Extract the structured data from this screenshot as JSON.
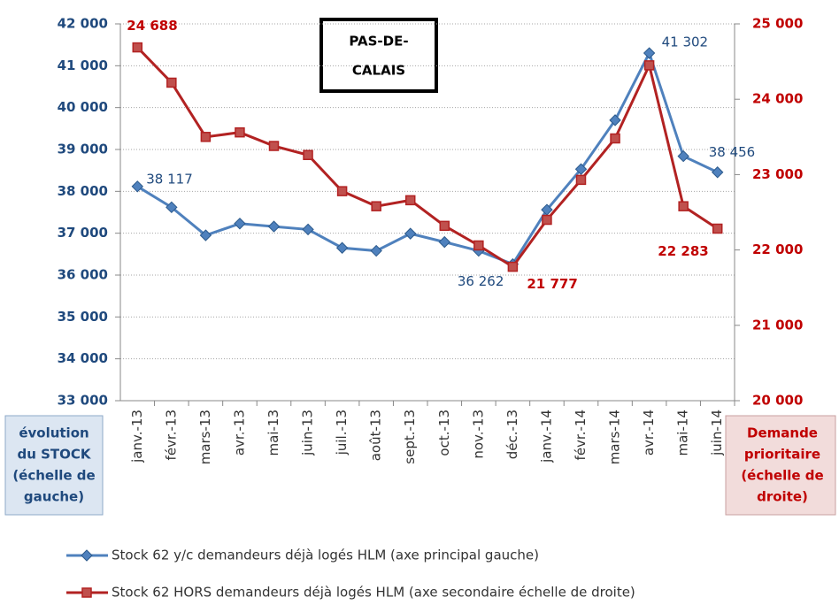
{
  "chart_data": {
    "type": "line",
    "title": [
      "PAS-DE-",
      "CALAIS"
    ],
    "y_label": [
      "évolution",
      "du STOCK",
      "(échelle de",
      "gauche)"
    ],
    "y2_label": [
      "Demande",
      "prioritaire",
      "(échelle de",
      "droite)"
    ],
    "categories": [
      "janv.-13",
      "févr.-13",
      "mars-13",
      "avr.-13",
      "mai-13",
      "juin-13",
      "juil.-13",
      "août-13",
      "sept.-13",
      "oct.-13",
      "nov.-13",
      "déc.-13",
      "janv.-14",
      "févr.-14",
      "mars-14",
      "avr.-14",
      "mai-14",
      "juin-14"
    ],
    "series": [
      {
        "name": "Stock 62 y/c demandeurs déjà logés HLM (axe principal gauche)",
        "color": "#4f81bd",
        "marker": "diamond",
        "values": [
          38117,
          37620,
          36950,
          37230,
          37160,
          37090,
          36650,
          36580,
          36990,
          36790,
          36580,
          36262,
          37560,
          38530,
          39700,
          41302,
          38840,
          38456
        ],
        "value_labels": [
          "38 117",
          null,
          null,
          null,
          null,
          null,
          null,
          null,
          null,
          null,
          null,
          "36 262",
          null,
          null,
          null,
          "41 302",
          null,
          "38 456"
        ]
      },
      {
        "name": "Stock 62 HORS demandeurs déjà logés HLM (axe secondaire échelle de droite)",
        "color": "#b22222",
        "marker": "square",
        "axis": "y2",
        "values": [
          24688,
          24220,
          23500,
          23560,
          23380,
          23260,
          22780,
          22580,
          22660,
          22320,
          22060,
          21777,
          22400,
          22930,
          23480,
          24450,
          22580,
          22283
        ],
        "value_labels": [
          "24 688",
          null,
          null,
          null,
          null,
          null,
          null,
          null,
          null,
          null,
          null,
          "21 777",
          null,
          null,
          null,
          null,
          null,
          "22 283"
        ]
      }
    ],
    "ylim": [
      33000,
      42000
    ],
    "yticks": [
      {
        "value": 33000,
        "label": "33 000"
      },
      {
        "value": 34000,
        "label": "34 000"
      },
      {
        "value": 35000,
        "label": "35 000"
      },
      {
        "value": 36000,
        "label": "36 000"
      },
      {
        "value": 37000,
        "label": "37 000"
      },
      {
        "value": 38000,
        "label": "38 000"
      },
      {
        "value": 39000,
        "label": "39 000"
      },
      {
        "value": 40000,
        "label": "40 000"
      },
      {
        "value": 41000,
        "label": "41 000"
      },
      {
        "value": 42000,
        "label": "42 000"
      }
    ],
    "y2lim": [
      20000,
      25000
    ],
    "y2ticks": [
      {
        "value": 20000,
        "label": "20 000"
      },
      {
        "value": 21000,
        "label": "21 000"
      },
      {
        "value": 22000,
        "label": "22 000"
      },
      {
        "value": 23000,
        "label": "23 000"
      },
      {
        "value": 24000,
        "label": "24 000"
      },
      {
        "value": 25000,
        "label": "25 000"
      }
    ],
    "grid": true,
    "legend": "bottom"
  }
}
